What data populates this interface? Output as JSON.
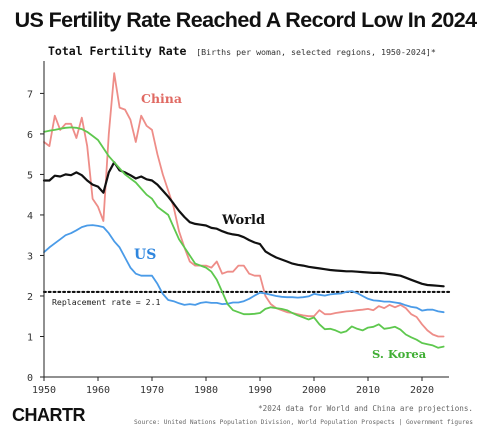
{
  "header": {
    "title": "US Fertility Rate Reached A Record Low In 2024",
    "subtitle": "Total Fertility Rate",
    "subtitle_meta": "[Births per woman, selected regions, 1950-2024]*"
  },
  "footer": {
    "brand": "CHARTR",
    "note": "*2024 data for World and China are projections.",
    "source": "Source: United Nations Population Division, World Population Prospects | Government figures"
  },
  "chart_data": {
    "type": "line",
    "title": "US Fertility Rate Reached A Record Low In 2024",
    "subtitle": "Total Fertility Rate",
    "xlabel": "",
    "ylabel": "",
    "xlim": [
      1950,
      2025
    ],
    "ylim": [
      0,
      7.8
    ],
    "x_ticks": [
      1950,
      1960,
      1970,
      1980,
      1990,
      2000,
      2010,
      2020
    ],
    "y_ticks": [
      0,
      1,
      2,
      3,
      4,
      5,
      6,
      7
    ],
    "grid": false,
    "reference_line": {
      "label": "Replacement rate = 2.1",
      "value": 2.1
    },
    "series": [
      {
        "name": "China",
        "color": "#ee8d88",
        "x": [
          1950,
          1951,
          1952,
          1953,
          1954,
          1955,
          1956,
          1957,
          1958,
          1959,
          1960,
          1961,
          1962,
          1963,
          1964,
          1965,
          1966,
          1967,
          1968,
          1969,
          1970,
          1971,
          1972,
          1973,
          1974,
          1975,
          1976,
          1977,
          1978,
          1979,
          1980,
          1981,
          1982,
          1983,
          1984,
          1985,
          1986,
          1987,
          1988,
          1989,
          1990,
          1991,
          1992,
          1993,
          1994,
          1995,
          1996,
          1997,
          1998,
          1999,
          2000,
          2001,
          2002,
          2003,
          2004,
          2005,
          2006,
          2007,
          2008,
          2009,
          2010,
          2011,
          2012,
          2013,
          2014,
          2015,
          2016,
          2017,
          2018,
          2019,
          2020,
          2021,
          2022,
          2023,
          2024
        ],
        "values": [
          5.8,
          5.7,
          6.45,
          6.1,
          6.25,
          6.25,
          5.9,
          6.4,
          5.7,
          4.4,
          4.2,
          3.85,
          6.0,
          7.5,
          6.65,
          6.6,
          6.35,
          5.8,
          6.45,
          6.2,
          6.1,
          5.5,
          5.0,
          4.6,
          4.2,
          3.6,
          3.2,
          2.85,
          2.75,
          2.75,
          2.75,
          2.7,
          2.85,
          2.55,
          2.6,
          2.6,
          2.75,
          2.75,
          2.55,
          2.5,
          2.5,
          2.0,
          1.8,
          1.7,
          1.65,
          1.6,
          1.58,
          1.55,
          1.52,
          1.5,
          1.5,
          1.65,
          1.55,
          1.55,
          1.58,
          1.6,
          1.62,
          1.63,
          1.65,
          1.66,
          1.68,
          1.65,
          1.75,
          1.7,
          1.78,
          1.72,
          1.78,
          1.7,
          1.55,
          1.48,
          1.3,
          1.15,
          1.05,
          1.0,
          1.0
        ]
      },
      {
        "name": "World",
        "color": "#111111",
        "x": [
          1950,
          1951,
          1952,
          1953,
          1954,
          1955,
          1956,
          1957,
          1958,
          1959,
          1960,
          1961,
          1962,
          1963,
          1964,
          1965,
          1966,
          1967,
          1968,
          1969,
          1970,
          1971,
          1972,
          1973,
          1974,
          1975,
          1976,
          1977,
          1978,
          1979,
          1980,
          1981,
          1982,
          1983,
          1984,
          1985,
          1986,
          1987,
          1988,
          1989,
          1990,
          1991,
          1992,
          1993,
          1994,
          1995,
          1996,
          1997,
          1998,
          1999,
          2000,
          2001,
          2002,
          2003,
          2004,
          2005,
          2006,
          2007,
          2008,
          2009,
          2010,
          2011,
          2012,
          2013,
          2014,
          2015,
          2016,
          2017,
          2018,
          2019,
          2020,
          2021,
          2022,
          2023,
          2024
        ],
        "values": [
          4.85,
          4.85,
          4.97,
          4.95,
          5.0,
          4.98,
          5.05,
          4.98,
          4.85,
          4.75,
          4.7,
          4.55,
          5.05,
          5.3,
          5.1,
          5.05,
          4.98,
          4.9,
          4.95,
          4.88,
          4.85,
          4.75,
          4.6,
          4.45,
          4.28,
          4.1,
          3.95,
          3.82,
          3.78,
          3.76,
          3.74,
          3.68,
          3.66,
          3.6,
          3.55,
          3.52,
          3.5,
          3.45,
          3.38,
          3.32,
          3.28,
          3.1,
          3.02,
          2.95,
          2.9,
          2.85,
          2.8,
          2.77,
          2.75,
          2.72,
          2.7,
          2.68,
          2.66,
          2.64,
          2.63,
          2.62,
          2.61,
          2.61,
          2.6,
          2.59,
          2.58,
          2.57,
          2.57,
          2.56,
          2.54,
          2.52,
          2.5,
          2.45,
          2.4,
          2.35,
          2.3,
          2.27,
          2.26,
          2.25,
          2.24
        ]
      },
      {
        "name": "US",
        "color": "#4a9be8",
        "x": [
          1950,
          1951,
          1952,
          1953,
          1954,
          1955,
          1956,
          1957,
          1958,
          1959,
          1960,
          1961,
          1962,
          1963,
          1964,
          1965,
          1966,
          1967,
          1968,
          1969,
          1970,
          1971,
          1972,
          1973,
          1974,
          1975,
          1976,
          1977,
          1978,
          1979,
          1980,
          1981,
          1982,
          1983,
          1984,
          1985,
          1986,
          1987,
          1988,
          1989,
          1990,
          1991,
          1992,
          1993,
          1994,
          1995,
          1996,
          1997,
          1998,
          1999,
          2000,
          2001,
          2002,
          2003,
          2004,
          2005,
          2006,
          2007,
          2008,
          2009,
          2010,
          2011,
          2012,
          2013,
          2014,
          2015,
          2016,
          2017,
          2018,
          2019,
          2020,
          2021,
          2022,
          2023,
          2024
        ],
        "values": [
          3.08,
          3.2,
          3.3,
          3.4,
          3.5,
          3.55,
          3.62,
          3.7,
          3.74,
          3.75,
          3.73,
          3.7,
          3.55,
          3.35,
          3.2,
          2.95,
          2.7,
          2.55,
          2.5,
          2.5,
          2.5,
          2.3,
          2.05,
          1.9,
          1.87,
          1.82,
          1.78,
          1.8,
          1.78,
          1.83,
          1.85,
          1.83,
          1.83,
          1.8,
          1.81,
          1.84,
          1.84,
          1.87,
          1.93,
          2.01,
          2.08,
          2.06,
          2.03,
          2.0,
          1.98,
          1.97,
          1.97,
          1.96,
          1.97,
          1.99,
          2.05,
          2.03,
          2.01,
          2.04,
          2.05,
          2.06,
          2.1,
          2.12,
          2.07,
          2.0,
          1.93,
          1.89,
          1.88,
          1.86,
          1.86,
          1.84,
          1.82,
          1.77,
          1.73,
          1.71,
          1.64,
          1.66,
          1.66,
          1.62,
          1.6
        ]
      },
      {
        "name": "S. Korea",
        "color": "#5ec84e",
        "x": [
          1950,
          1951,
          1952,
          1953,
          1954,
          1955,
          1956,
          1957,
          1958,
          1959,
          1960,
          1961,
          1962,
          1963,
          1964,
          1965,
          1966,
          1967,
          1968,
          1969,
          1970,
          1971,
          1972,
          1973,
          1974,
          1975,
          1976,
          1977,
          1978,
          1979,
          1980,
          1981,
          1982,
          1983,
          1984,
          1985,
          1986,
          1987,
          1988,
          1989,
          1990,
          1991,
          1992,
          1993,
          1994,
          1995,
          1996,
          1997,
          1998,
          1999,
          2000,
          2001,
          2002,
          2003,
          2004,
          2005,
          2006,
          2007,
          2008,
          2009,
          2010,
          2011,
          2012,
          2013,
          2014,
          2015,
          2016,
          2017,
          2018,
          2019,
          2020,
          2021,
          2022,
          2023,
          2024
        ],
        "values": [
          6.05,
          6.08,
          6.1,
          6.13,
          6.15,
          6.16,
          6.15,
          6.12,
          6.05,
          5.95,
          5.85,
          5.65,
          5.45,
          5.3,
          5.15,
          5.0,
          4.9,
          4.8,
          4.65,
          4.5,
          4.4,
          4.2,
          4.1,
          4.0,
          3.7,
          3.4,
          3.2,
          3.0,
          2.8,
          2.75,
          2.7,
          2.6,
          2.4,
          2.1,
          1.8,
          1.65,
          1.6,
          1.55,
          1.55,
          1.56,
          1.58,
          1.68,
          1.72,
          1.7,
          1.68,
          1.65,
          1.58,
          1.52,
          1.47,
          1.42,
          1.47,
          1.3,
          1.18,
          1.19,
          1.15,
          1.09,
          1.13,
          1.25,
          1.19,
          1.15,
          1.22,
          1.24,
          1.3,
          1.19,
          1.21,
          1.24,
          1.17,
          1.05,
          0.98,
          0.92,
          0.84,
          0.81,
          0.78,
          0.72,
          0.75
        ]
      }
    ],
    "annotations": [
      {
        "text": "China",
        "color": "#e06a63"
      },
      {
        "text": "World",
        "color": "#111111"
      },
      {
        "text": "US",
        "color": "#2f86de"
      },
      {
        "text": "S. Korea",
        "color": "#3fae33"
      }
    ]
  }
}
